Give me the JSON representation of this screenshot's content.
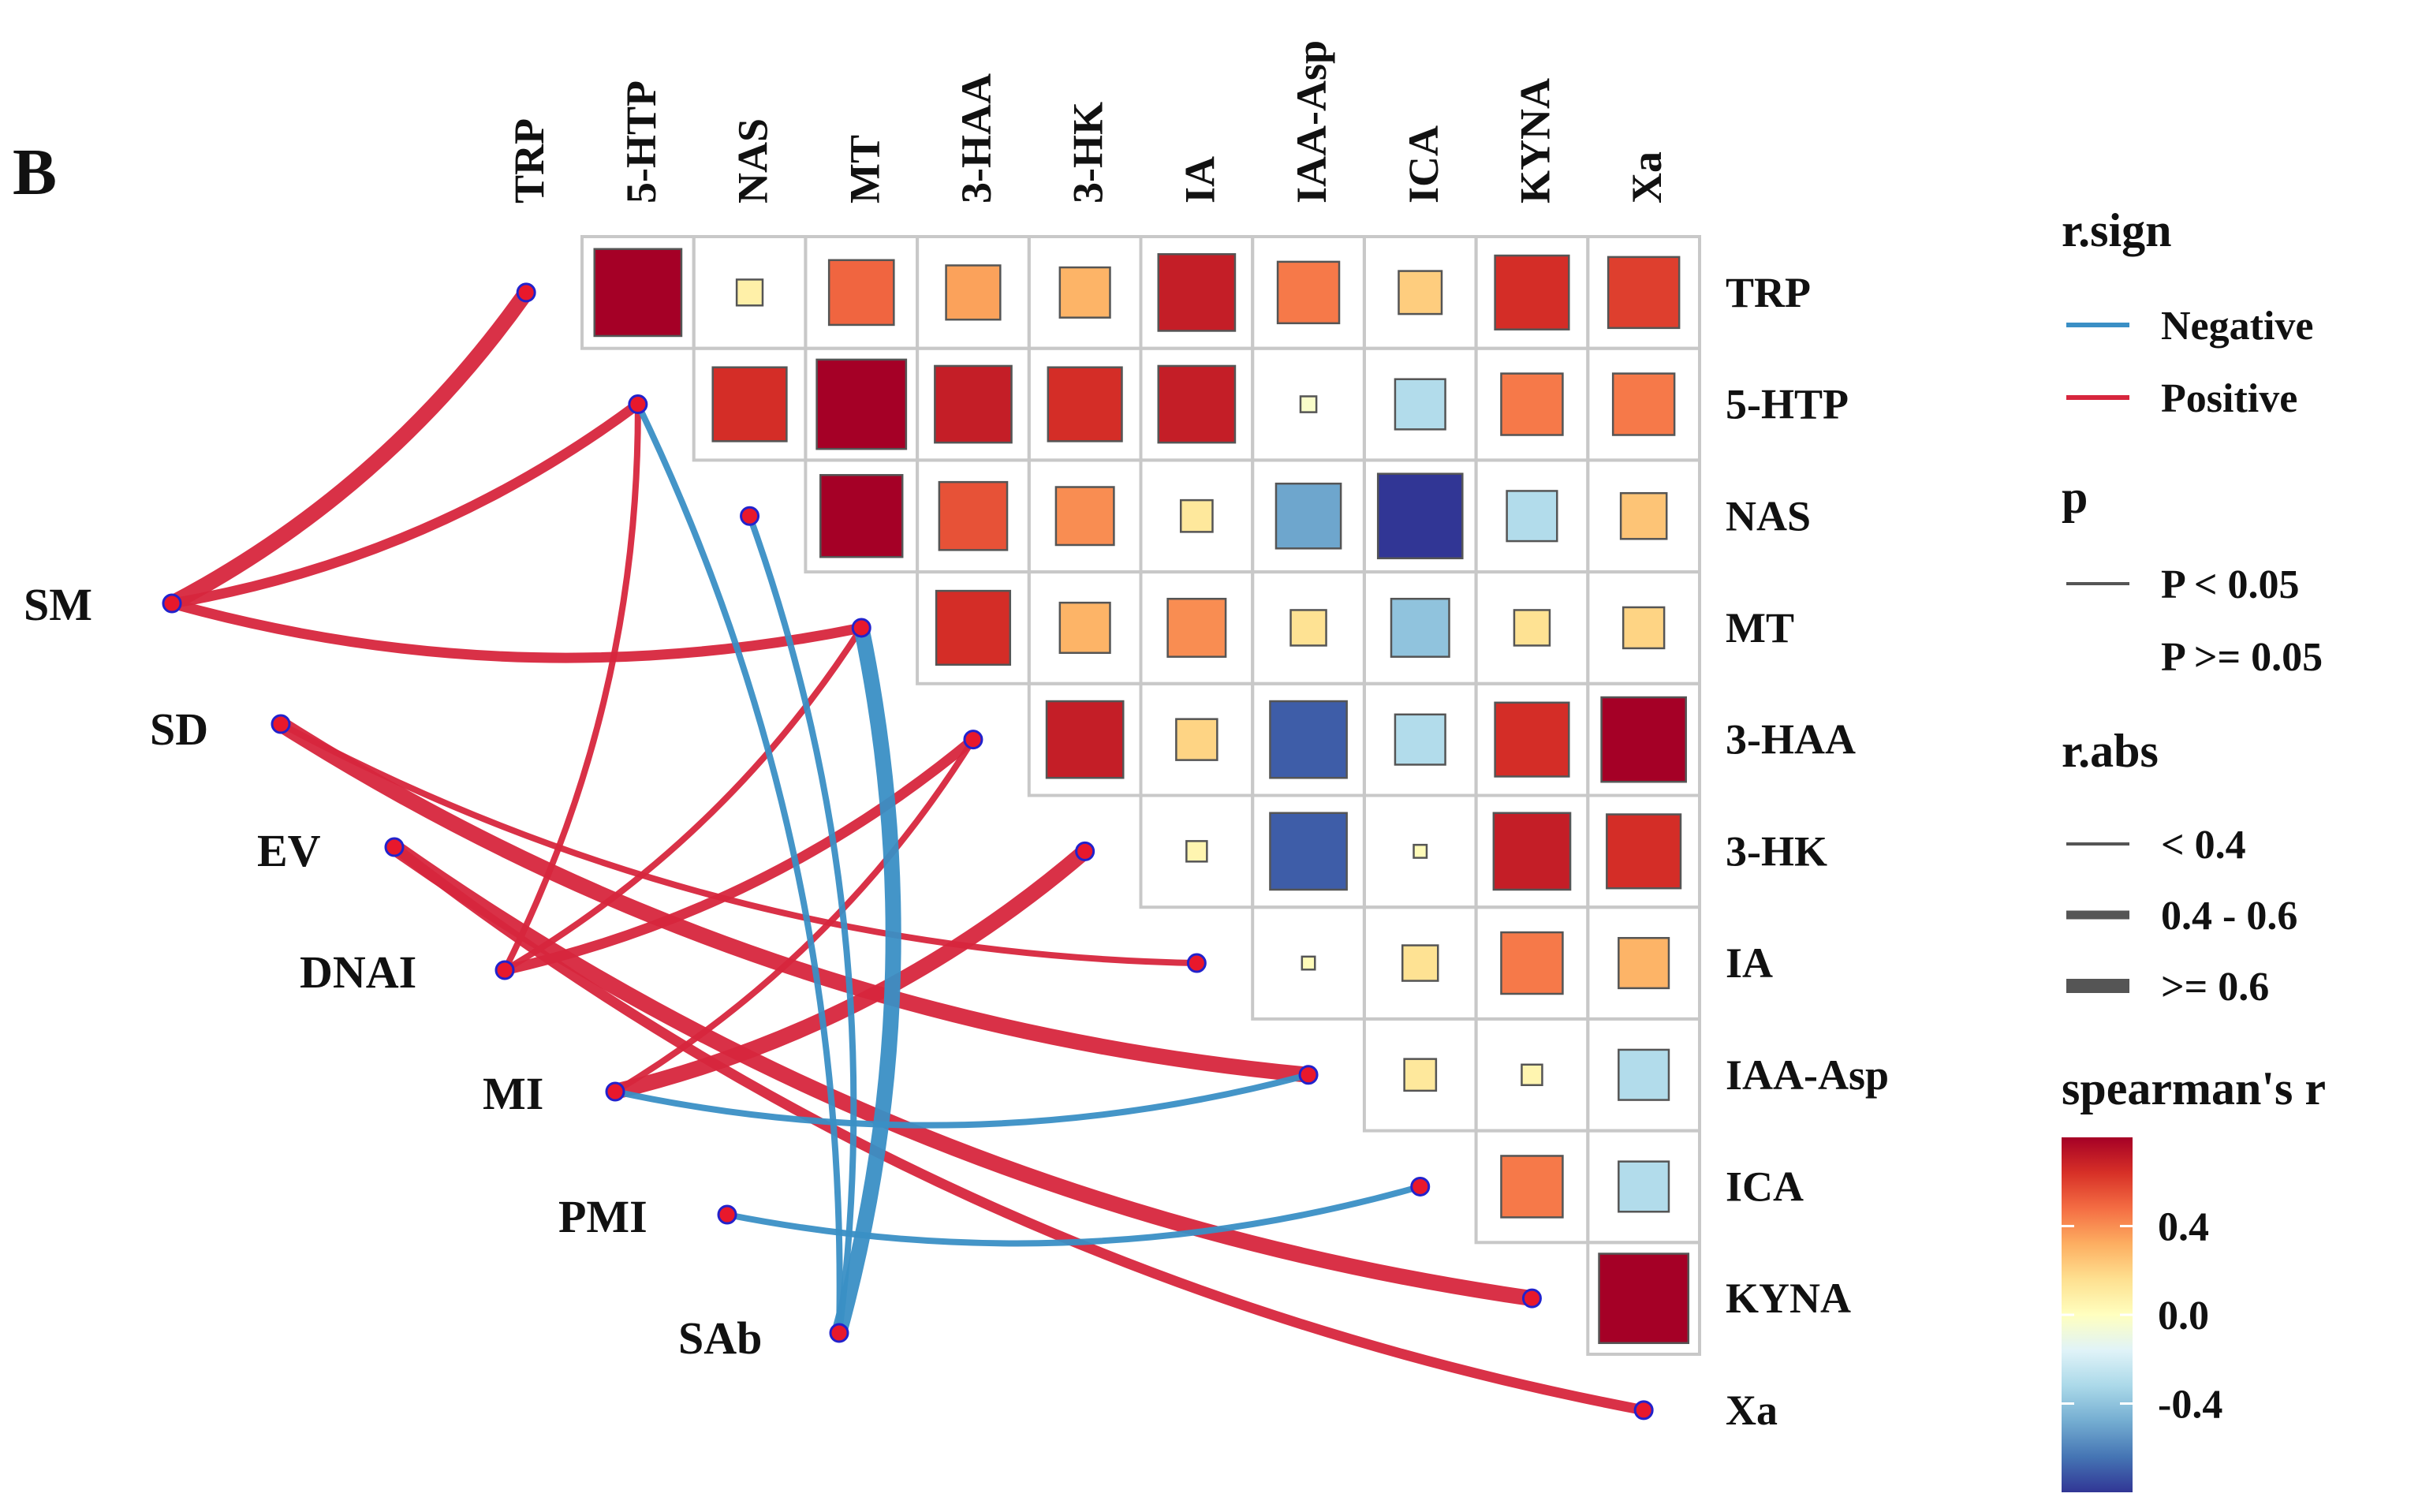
{
  "colors": {
    "positive_line": "#d7263d",
    "negative_line": "#3a8fc5",
    "node_fill": "#e8182c",
    "node_stroke": "#2222cc",
    "grid": "#c8c8c8",
    "palette": [
      "#313695",
      "#4575b4",
      "#74add1",
      "#abd9e9",
      "#e0f3f8",
      "#ffffbf",
      "#fee090",
      "#fdae61",
      "#f46d43",
      "#d73027",
      "#a50026"
    ]
  },
  "chart_data": {
    "type": "heatmap",
    "panel_label": "B",
    "variables": [
      "TRP",
      "5-HTP",
      "NAS",
      "MT",
      "3-HAA",
      "3-HK",
      "IA",
      "IAA-Asp",
      "ICA",
      "KYNA",
      "Xa"
    ],
    "matrix_r": [
      [
        0.9,
        0.08,
        0.5,
        0.35,
        0.3,
        0.7,
        0.45,
        0.22,
        0.65,
        0.6
      ],
      [
        0.65,
        0.95,
        0.7,
        0.65,
        0.7,
        -0.03,
        -0.3,
        0.45,
        0.45
      ],
      [
        0.8,
        0.55,
        0.4,
        0.12,
        -0.5,
        -0.85,
        -0.3,
        0.25
      ],
      [
        0.65,
        0.3,
        0.4,
        0.15,
        -0.4,
        0.15,
        0.2
      ],
      [
        0.7,
        0.2,
        -0.7,
        -0.3,
        0.65,
        0.85
      ],
      [
        0.05,
        -0.7,
        0.02,
        0.7,
        0.65
      ],
      [
        0.02,
        0.15,
        0.45,
        0.3
      ],
      [
        0.12,
        0.05,
        -0.3
      ],
      [
        0.45,
        -0.3
      ],
      [
        0.95
      ]
    ],
    "matrix_note": "Upper triangle, row i lists r for columns i+1..end; square size ~ |r|",
    "env_variables": [
      "SM",
      "SD",
      "EV",
      "DNAI",
      "MI",
      "PMI",
      "SAb"
    ],
    "links": [
      {
        "from": "SM",
        "to": "TRP",
        "sign": "Positive",
        "rabs": ">= 0.6"
      },
      {
        "from": "SM",
        "to": "5-HTP",
        "sign": "Positive",
        "rabs": "0.4 - 0.6"
      },
      {
        "from": "SM",
        "to": "MT",
        "sign": "Positive",
        "rabs": "0.4 - 0.6"
      },
      {
        "from": "SD",
        "to": "IA",
        "sign": "Positive",
        "rabs": "< 0.4"
      },
      {
        "from": "SD",
        "to": "IAA-Asp",
        "sign": "Positive",
        "rabs": ">= 0.6"
      },
      {
        "from": "EV",
        "to": "KYNA",
        "sign": "Positive",
        "rabs": ">= 0.6"
      },
      {
        "from": "EV",
        "to": "Xa",
        "sign": "Positive",
        "rabs": "0.4 - 0.6"
      },
      {
        "from": "DNAI",
        "to": "5-HTP",
        "sign": "Positive",
        "rabs": "< 0.4"
      },
      {
        "from": "DNAI",
        "to": "MT",
        "sign": "Positive",
        "rabs": "< 0.4"
      },
      {
        "from": "DNAI",
        "to": "3-HAA",
        "sign": "Positive",
        "rabs": "0.4 - 0.6"
      },
      {
        "from": "MI",
        "to": "3-HAA",
        "sign": "Positive",
        "rabs": "< 0.4"
      },
      {
        "from": "MI",
        "to": "3-HK",
        "sign": "Positive",
        "rabs": ">= 0.6"
      },
      {
        "from": "MI",
        "to": "IAA-Asp",
        "sign": "Negative",
        "rabs": "< 0.4"
      },
      {
        "from": "PMI",
        "to": "ICA",
        "sign": "Negative",
        "rabs": "< 0.4"
      },
      {
        "from": "SAb",
        "to": "5-HTP",
        "sign": "Negative",
        "rabs": "< 0.4"
      },
      {
        "from": "SAb",
        "to": "NAS",
        "sign": "Negative",
        "rabs": "< 0.4"
      },
      {
        "from": "SAb",
        "to": "MT",
        "sign": "Negative",
        "rabs": ">= 0.6"
      }
    ],
    "legend": {
      "sign_title": "r.sign",
      "sign_items": [
        "Negative",
        "Positive"
      ],
      "p_title": "p",
      "p_items": [
        "P < 0.05",
        "P >= 0.05"
      ],
      "rabs_title": "r.abs",
      "rabs_items": [
        "< 0.4",
        "0.4 - 0.6",
        ">= 0.6"
      ],
      "color_title": "spearman's r",
      "color_ticks": [
        "0.4",
        "0.0",
        "-0.4"
      ],
      "color_tick_values": [
        0.4,
        0.0,
        -0.4
      ],
      "color_range": [
        -0.8,
        0.8
      ]
    }
  }
}
